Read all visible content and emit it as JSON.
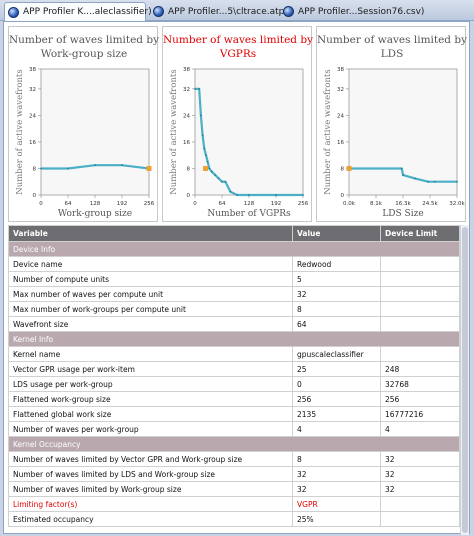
{
  "tabs": [
    {
      "label": "APP Profiler K....aleclassifier)",
      "closable": true,
      "active": true
    },
    {
      "label": "APP Profiler...5\\cltrace.atp)",
      "closable": false,
      "active": false
    },
    {
      "label": "APP Profiler...Session76.csv)",
      "closable": false,
      "active": false
    }
  ],
  "charts": [
    {
      "title_lines": [
        "Number of waves limited by",
        "Work-group size"
      ],
      "title_color": "#555555",
      "ylabel": "Number of active wavefronts",
      "xlabel": "Work-group size",
      "line_color": "#49b0c8",
      "marker_color": "#f0a030",
      "chart_data": {
        "type": "line",
        "xlim": [
          0,
          256
        ],
        "ylim": [
          0,
          38
        ],
        "xticks": [
          "0",
          "64",
          "128",
          "192",
          "256"
        ],
        "yticks": [
          "0",
          "8",
          "16",
          "24",
          "32",
          "38"
        ],
        "series": [
          {
            "x": [
              0,
              64,
              128,
              192,
              256
            ],
            "y": [
              8,
              8,
              9,
              9,
              8
            ]
          }
        ],
        "marker": {
          "x": 256,
          "y": 8
        }
      }
    },
    {
      "title_lines": [
        "Number of waves limited by",
        "VGPRs"
      ],
      "title_color": "#e00000",
      "ylabel": "Number of active wavefronts",
      "xlabel": "Number of VGPRs",
      "line_color": "#49b0c8",
      "marker_color": "#f0a030",
      "chart_data": {
        "type": "line",
        "xlim": [
          0,
          256
        ],
        "ylim": [
          0,
          38
        ],
        "xticks": [
          "0",
          "64",
          "128",
          "192",
          "256"
        ],
        "yticks": [
          "0",
          "8",
          "16",
          "24",
          "32",
          "38"
        ],
        "series": [
          {
            "x": [
              0,
              10,
              14,
              18,
              22,
              26,
              30,
              34,
              40,
              48,
              56,
              64,
              72,
              84,
              100,
              128,
              192,
              256
            ],
            "y": [
              32,
              32,
              24,
              18,
              14,
              12,
              10,
              8,
              7,
              6,
              5,
              4,
              4,
              1,
              0,
              0,
              0,
              0
            ]
          }
        ],
        "marker": {
          "x": 25,
          "y": 8
        }
      }
    },
    {
      "title_lines": [
        "Number of waves limited by",
        "LDS"
      ],
      "title_color": "#555555",
      "ylabel": "Number of active wavefronts",
      "xlabel": "LDS Size",
      "line_color": "#49b0c8",
      "marker_color": "#f0a030",
      "chart_data": {
        "type": "line",
        "xlim": [
          0,
          32768
        ],
        "ylim": [
          0,
          38
        ],
        "xticks": [
          "0.0k",
          "8.1k",
          "16.3k",
          "24.5k",
          "32.0k"
        ],
        "yticks": [
          "0",
          "8",
          "16",
          "24",
          "32",
          "38"
        ],
        "series": [
          {
            "x": [
              0,
              16000,
              16400,
              20000,
              24000,
              26000,
              32768
            ],
            "y": [
              8,
              8,
              6,
              5,
              4,
              4,
              4
            ]
          }
        ],
        "marker": {
          "x": 0,
          "y": 8
        }
      }
    }
  ],
  "table": {
    "headers": [
      "Variable",
      "Value",
      "Device Limit"
    ],
    "sections": [
      {
        "title": "Device Info",
        "rows": [
          {
            "variable": "Device name",
            "value": "Redwood",
            "limit": ""
          },
          {
            "variable": "Number of compute units",
            "value": "5",
            "limit": ""
          },
          {
            "variable": "Max number of waves per compute unit",
            "value": "32",
            "limit": ""
          },
          {
            "variable": "Max number of work-groups per compute unit",
            "value": "8",
            "limit": ""
          },
          {
            "variable": "Wavefront size",
            "value": "64",
            "limit": ""
          }
        ]
      },
      {
        "title": "Kernel Info",
        "rows": [
          {
            "variable": "Kernel name",
            "value": "gpuscaleclassifier",
            "limit": ""
          },
          {
            "variable": "Vector GPR usage per work-item",
            "value": "25",
            "limit": "248"
          },
          {
            "variable": "LDS usage per work-group",
            "value": "0",
            "limit": "32768"
          },
          {
            "variable": "Flattened work-group size",
            "value": "256",
            "limit": "256"
          },
          {
            "variable": "Flattened global work size",
            "value": "2135",
            "limit": "16777216"
          },
          {
            "variable": "Number of waves per work-group",
            "value": "4",
            "limit": "4"
          }
        ]
      },
      {
        "title": "Kernel Occupancy",
        "rows": [
          {
            "variable": "Number of waves limited by Vector GPR and Work-group size",
            "value": "8",
            "limit": "32"
          },
          {
            "variable": "Number of waves limited by LDS and Work-group size",
            "value": "32",
            "limit": "32"
          },
          {
            "variable": "Number of waves limited by Work-group size",
            "value": "32",
            "limit": "32"
          },
          {
            "variable": "Limiting factor(s)",
            "value": "VGPR",
            "limit": "",
            "highlight": true
          },
          {
            "variable": "Estimated occupancy",
            "value": "25%",
            "limit": ""
          }
        ]
      }
    ]
  }
}
